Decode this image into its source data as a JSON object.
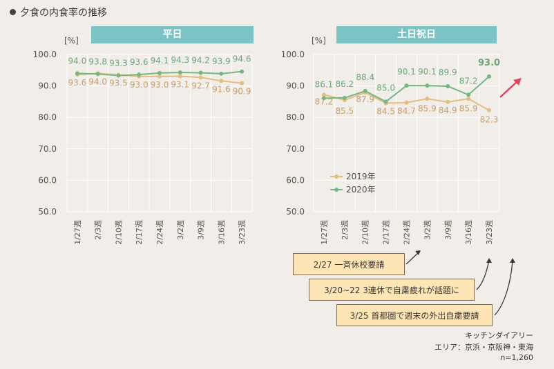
{
  "title": "夕食の内食率の推移",
  "colors": {
    "y2019": "#e3be80",
    "y2020": "#74b77f",
    "header": "#7cc3c6",
    "grid": "#ffffff",
    "label2019": "#c89e6c",
    "label2020": "#6aa877",
    "arrow": "#e0455e"
  },
  "chart_data": [
    {
      "type": "line",
      "title": "平日",
      "ylabel": "[%]",
      "ylim": [
        50,
        100
      ],
      "yticks": [
        "100.0",
        "90.0",
        "80.0",
        "70.0",
        "60.0",
        "50.0"
      ],
      "categories": [
        "1/27週",
        "2/3週",
        "2/10週",
        "2/17週",
        "2/24週",
        "3/2週",
        "3/9週",
        "3/16週",
        "3/23週"
      ],
      "series": [
        {
          "name": "2019年",
          "values": [
            93.6,
            94.0,
            93.5,
            93.0,
            93.0,
            93.1,
            92.7,
            91.6,
            90.9
          ],
          "labels": [
            "93.6",
            "94.0",
            "93.5",
            "93.0",
            "93.0",
            "93.1",
            "92.7",
            "91.6",
            "90.9"
          ]
        },
        {
          "name": "2020年",
          "values": [
            94.0,
            93.8,
            93.3,
            93.6,
            94.1,
            94.3,
            94.2,
            93.9,
            94.6
          ],
          "labels": [
            "94.0",
            "93.8",
            "93.3",
            "93.6",
            "94.1",
            "94.3",
            "94.2",
            "93.9",
            "94.6"
          ]
        }
      ]
    },
    {
      "type": "line",
      "title": "土日祝日",
      "ylabel": "[%]",
      "ylim": [
        50,
        100
      ],
      "yticks": [
        "100.0",
        "90.0",
        "80.0",
        "70.0",
        "60.0",
        "50.0"
      ],
      "categories": [
        "1/27週",
        "2/3週",
        "2/10週",
        "2/17週",
        "2/24週",
        "3/2週",
        "3/9週",
        "3/16週",
        "3/23週"
      ],
      "legend": [
        "2019年",
        "2020年"
      ],
      "series": [
        {
          "name": "2019年",
          "values": [
            87.2,
            85.5,
            87.9,
            84.5,
            84.7,
            85.9,
            84.9,
            85.9,
            82.3
          ],
          "labels": [
            "87.2",
            "85.5",
            "87.9",
            "84.5",
            "84.7",
            "85.9",
            "84.9",
            "85.9",
            "82.3"
          ]
        },
        {
          "name": "2020年",
          "values": [
            86.1,
            86.2,
            88.4,
            85.0,
            90.1,
            90.1,
            89.9,
            87.2,
            93.0
          ],
          "labels": [
            "86.1",
            "86.2",
            "88.4",
            "85.0",
            "90.1",
            "90.1",
            "89.9",
            "87.2",
            "93.0"
          ]
        }
      ]
    }
  ],
  "annotations": [
    "2/27 一斉休校要請",
    "3/20~22 3連休で自粛疲れが話題に",
    "3/25 首都圏で週末の外出自粛要請"
  ],
  "source": {
    "name": "キッチンダイアリー",
    "area": "エリア：京浜・京阪神・東海",
    "n": "n=1,260"
  }
}
